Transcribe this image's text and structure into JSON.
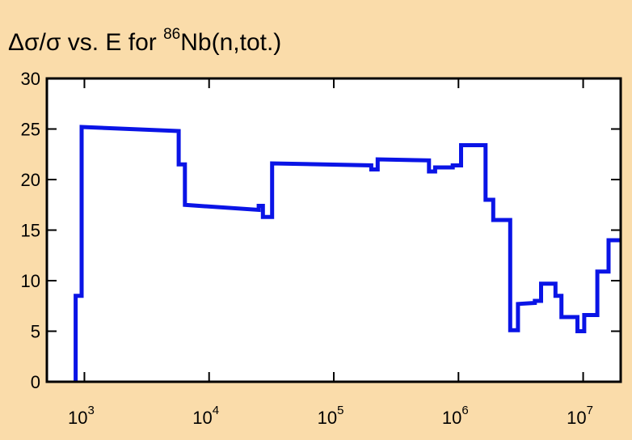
{
  "chart_data": {
    "type": "line",
    "title": {
      "prefix": "Δσ/σ vs. E for ",
      "superscript": "86",
      "suffix": "Nb(n,tot.)"
    },
    "xlabel": "",
    "ylabel": "",
    "xscale": "log",
    "xlim": [
      500,
      20000000
    ],
    "ylim": [
      0,
      30
    ],
    "grid": false,
    "y_ticks": [
      0,
      5,
      10,
      15,
      20,
      25,
      30
    ],
    "y_tick_labels": [
      "0",
      "5",
      "10",
      "15",
      "20",
      "25",
      "30"
    ],
    "x_ticks": [
      {
        "value": 1000,
        "base": "10",
        "exp": "3"
      },
      {
        "value": 10000,
        "base": "10",
        "exp": "4"
      },
      {
        "value": 100000,
        "base": "10",
        "exp": "5"
      },
      {
        "value": 1000000,
        "base": "10",
        "exp": "6"
      },
      {
        "value": 10000000,
        "base": "10",
        "exp": "7"
      }
    ],
    "line_color": "#0a14e6",
    "series": [
      {
        "step": true,
        "points": [
          [
            850,
            0
          ],
          [
            850,
            8.5
          ],
          [
            950,
            8.5
          ],
          [
            950,
            25.2
          ],
          [
            5700,
            24.8
          ],
          [
            5700,
            21.5
          ],
          [
            6400,
            21.5
          ],
          [
            6400,
            17.5
          ],
          [
            25000,
            17.0
          ],
          [
            25000,
            17.4
          ],
          [
            27000,
            17.4
          ],
          [
            27000,
            16.3
          ],
          [
            32000,
            16.3
          ],
          [
            32000,
            21.6
          ],
          [
            200000,
            21.4
          ],
          [
            200000,
            21.0
          ],
          [
            225000,
            21.0
          ],
          [
            225000,
            22.0
          ],
          [
            580000,
            21.9
          ],
          [
            580000,
            20.8
          ],
          [
            650000,
            20.8
          ],
          [
            650000,
            21.2
          ],
          [
            900000,
            21.2
          ],
          [
            900000,
            21.4
          ],
          [
            1050000,
            21.4
          ],
          [
            1050000,
            23.4
          ],
          [
            1650000,
            23.4
          ],
          [
            1650000,
            18.0
          ],
          [
            1900000,
            18.0
          ],
          [
            1900000,
            16.0
          ],
          [
            2600000,
            16.0
          ],
          [
            2600000,
            5.1
          ],
          [
            3000000,
            5.1
          ],
          [
            3000000,
            7.7
          ],
          [
            4100000,
            7.8
          ],
          [
            4100000,
            8.0
          ],
          [
            4600000,
            8.0
          ],
          [
            4600000,
            9.7
          ],
          [
            6000000,
            9.7
          ],
          [
            6000000,
            8.5
          ],
          [
            6700000,
            8.5
          ],
          [
            6700000,
            6.4
          ],
          [
            9000000,
            6.4
          ],
          [
            9000000,
            5.0
          ],
          [
            10200000,
            5.0
          ],
          [
            10200000,
            6.6
          ],
          [
            13000000,
            6.6
          ],
          [
            13000000,
            10.9
          ],
          [
            16000000,
            10.9
          ],
          [
            16000000,
            14.0
          ],
          [
            20000000,
            14.0
          ]
        ]
      }
    ]
  }
}
